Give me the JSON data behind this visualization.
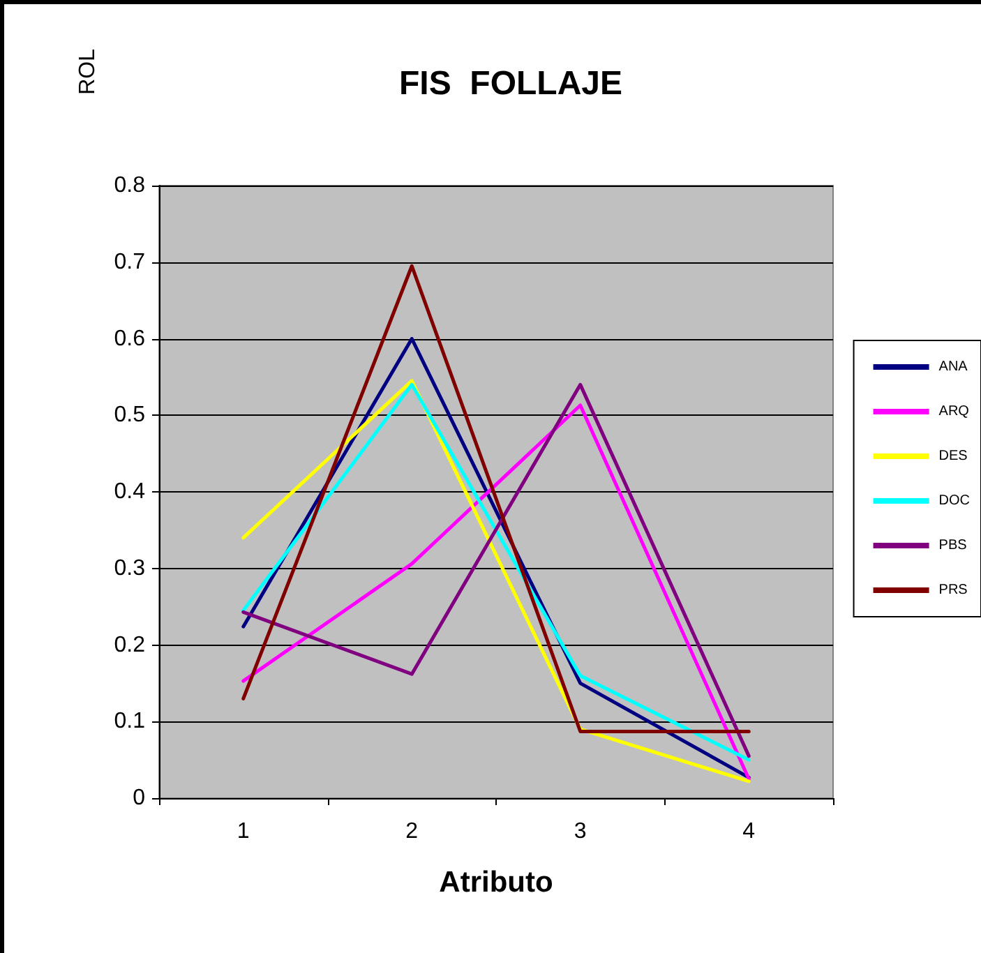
{
  "chart_data": {
    "type": "line",
    "title": "FIS  FOLLAJE",
    "xlabel": "Atributo",
    "ylabel": "ROL",
    "categories": [
      "1",
      "2",
      "3",
      "4"
    ],
    "series": [
      {
        "name": "ANA",
        "color": "#000080",
        "values": [
          0.224,
          0.6,
          0.15,
          0.027
        ]
      },
      {
        "name": "ARQ",
        "color": "#ff00ff",
        "values": [
          0.153,
          0.306,
          0.513,
          0.025
        ]
      },
      {
        "name": "DES",
        "color": "#ffff00",
        "values": [
          0.34,
          0.545,
          0.09,
          0.022
        ]
      },
      {
        "name": "DOC",
        "color": "#00ffff",
        "values": [
          0.245,
          0.54,
          0.16,
          0.05
        ]
      },
      {
        "name": "PBS",
        "color": "#800080",
        "values": [
          0.243,
          0.162,
          0.54,
          0.055
        ]
      },
      {
        "name": "PRS",
        "color": "#800000",
        "values": [
          0.13,
          0.695,
          0.087,
          0.087
        ]
      }
    ],
    "ylim": [
      0,
      0.8
    ],
    "yticks": [
      0,
      0.1,
      0.2,
      0.3,
      0.4,
      0.5,
      0.6,
      0.7,
      0.8
    ],
    "grid": "y",
    "legend": "right",
    "marker": "none",
    "line_style": "solid"
  }
}
